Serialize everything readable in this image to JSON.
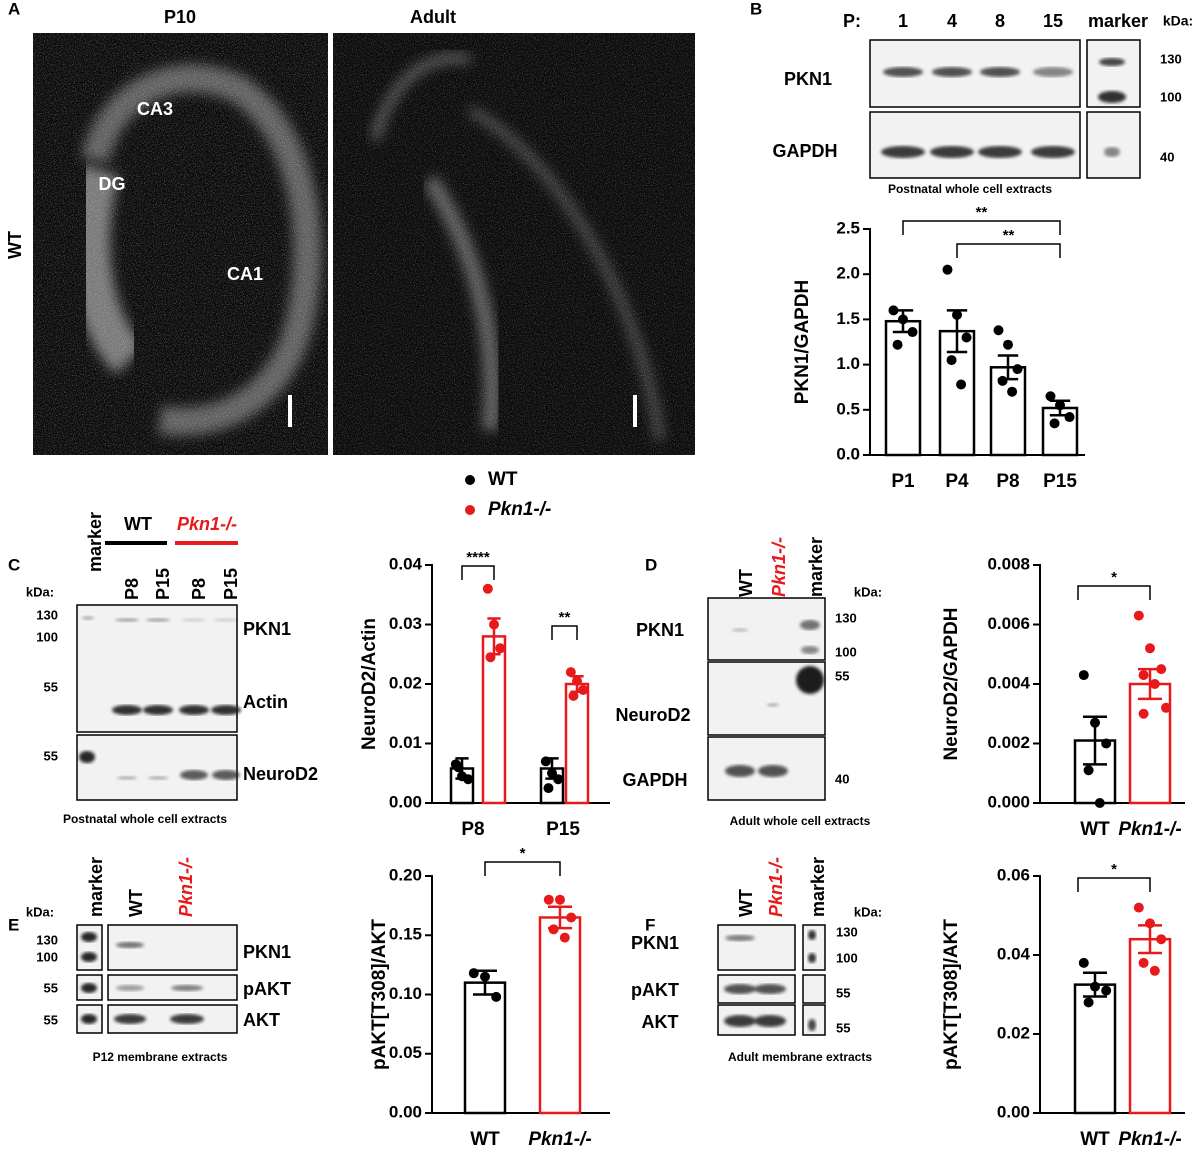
{
  "panel_labels": [
    "A",
    "B",
    "C",
    "D",
    "E",
    "F"
  ],
  "images": {
    "row_label": "WT",
    "titles": [
      "P10",
      "Adult"
    ],
    "regions": [
      "CA3",
      "DG",
      "CA1"
    ]
  },
  "blot_B": {
    "lane_prefix": "P:",
    "lanes": [
      "1",
      "4",
      "8",
      "15"
    ],
    "marker": "marker",
    "kda": "kDa:",
    "sizes": [
      "130",
      "100",
      "40"
    ],
    "bands": [
      "PKN1",
      "GAPDH"
    ],
    "caption": "Postnatal whole cell extracts"
  },
  "blot_C": {
    "marker": "marker",
    "groups": [
      "WT",
      "Pkn1-/-"
    ],
    "lanes": [
      "P8",
      "P15",
      "P8",
      "P15"
    ],
    "kda": "kDa:",
    "sizes": [
      "130",
      "100",
      "55",
      "55"
    ],
    "bands": [
      "PKN1",
      "Actin",
      "NeuroD2"
    ],
    "caption": "Postnatal whole cell extracts"
  },
  "blot_D": {
    "lanes": [
      "WT",
      "Pkn1-/-",
      "marker"
    ],
    "kda": "kDa:",
    "sizes": [
      "130",
      "100",
      "55",
      "40"
    ],
    "bands": [
      "PKN1",
      "NeuroD2",
      "GAPDH"
    ],
    "caption": "Adult whole cell extracts"
  },
  "blot_E": {
    "lanes": [
      "marker",
      "WT",
      "Pkn1-/-"
    ],
    "kda": "kDa:",
    "sizes": [
      "130",
      "100",
      "55",
      "55"
    ],
    "bands": [
      "PKN1",
      "pAKT",
      "AKT"
    ],
    "caption": "P12 membrane extracts"
  },
  "blot_F": {
    "lanes": [
      "WT",
      "Pkn1-/-",
      "marker"
    ],
    "kda": "kDa:",
    "sizes": [
      "130",
      "100",
      "55",
      "55"
    ],
    "bands": [
      "PKN1",
      "pAKT",
      "AKT"
    ],
    "caption": "Adult membrane extracts"
  },
  "chart_data": [
    {
      "type": "bar",
      "ylabel": "PKN1/GAPDH",
      "categories": [
        "P1",
        "P4",
        "P8",
        "P15"
      ],
      "color": "#000000",
      "values": [
        1.48,
        1.37,
        0.97,
        0.52
      ],
      "errors": [
        0.12,
        0.23,
        0.13,
        0.08
      ],
      "points": [
        [
          1.6,
          1.5,
          1.36,
          1.22
        ],
        [
          2.05,
          1.55,
          1.3,
          1.05,
          0.78
        ],
        [
          1.38,
          1.22,
          0.95,
          0.82,
          0.7
        ],
        [
          0.65,
          0.55,
          0.42,
          0.35
        ]
      ],
      "ylim": [
        0,
        2.5
      ],
      "yticks": [
        {
          "value": 0,
          "label": "0.0"
        },
        0.5,
        {
          "value": 1,
          "label": "1.0"
        },
        1.5,
        {
          "value": 2,
          "label": "2.0"
        },
        2.5
      ],
      "significance": [
        "**",
        "**"
      ]
    },
    {
      "type": "bar",
      "ylabel": "NeuroD2/Actin",
      "categories": [
        "P8",
        "P15"
      ],
      "series": [
        {
          "name": "WT",
          "color": "#000000",
          "values": [
            0.0058,
            0.0058
          ],
          "errors": [
            0.0017,
            0.0017
          ],
          "points": [
            [
              0.0065,
              0.0045,
              0.004,
              0.006
            ],
            [
              0.007,
              0.005,
              0.004,
              0.0025
            ]
          ]
        },
        {
          "name": "Pkn1-/-",
          "color": "#e8191b",
          "values": [
            0.028,
            0.02
          ],
          "errors": [
            0.003,
            0.0013
          ],
          "points": [
            [
              0.036,
              0.03,
              0.026,
              0.0245
            ],
            [
              0.022,
              0.0205,
              0.019,
              0.018
            ]
          ]
        }
      ],
      "ylim": [
        0,
        0.04
      ],
      "yticks": [
        {
          "value": 0,
          "label": "0.00"
        },
        0.01,
        0.02,
        0.03,
        0.04
      ],
      "significance": [
        "****",
        "**"
      ]
    },
    {
      "type": "bar",
      "ylabel": "NeuroD2/GAPDH",
      "categories": [
        "WT",
        "Pkn1-/-"
      ],
      "colors": [
        "#000000",
        "#e8191b"
      ],
      "values": [
        0.0021,
        0.004
      ],
      "errors": [
        0.0008,
        0.0005
      ],
      "points": [
        [
          0.0043,
          0.0027,
          0.002,
          0.0011,
          0.0
        ],
        [
          0.0063,
          0.0052,
          0.0045,
          0.0043,
          0.004,
          0.0032,
          0.003
        ]
      ],
      "ylim": [
        0,
        0.008
      ],
      "yticks": [
        {
          "value": 0,
          "label": "0.000"
        },
        0.002,
        0.004,
        0.006,
        0.008
      ],
      "significance": [
        "*"
      ]
    },
    {
      "type": "bar",
      "ylabel": "pAKT[T308]/AKT",
      "categories": [
        "WT",
        "Pkn1-/-"
      ],
      "colors": [
        "#000000",
        "#e8191b"
      ],
      "values": [
        0.11,
        0.165
      ],
      "errors": [
        0.01,
        0.009
      ],
      "points": [
        [
          0.118,
          0.115,
          0.098
        ],
        [
          0.18,
          0.18,
          0.165,
          0.155,
          0.148
        ]
      ],
      "ylim": [
        0,
        0.2
      ],
      "yticks": [
        {
          "value": 0,
          "label": "0.00"
        },
        0.05,
        {
          "value": 0.1,
          "label": "0.10"
        },
        0.15,
        {
          "value": 0.2,
          "label": "0.20"
        }
      ],
      "significance": [
        "*"
      ]
    },
    {
      "type": "bar",
      "ylabel": "pAKT[T308]/AKT",
      "categories": [
        "WT",
        "Pkn1-/-"
      ],
      "colors": [
        "#000000",
        "#e8191b"
      ],
      "values": [
        0.0325,
        0.044
      ],
      "errors": [
        0.003,
        0.0035
      ],
      "points": [
        [
          0.038,
          0.032,
          0.031,
          0.028
        ],
        [
          0.052,
          0.048,
          0.044,
          0.038,
          0.036
        ]
      ],
      "ylim": [
        0,
        0.06
      ],
      "yticks": [
        {
          "value": 0,
          "label": "0.00"
        },
        0.02,
        0.04,
        0.06
      ],
      "significance": [
        "*"
      ]
    }
  ]
}
